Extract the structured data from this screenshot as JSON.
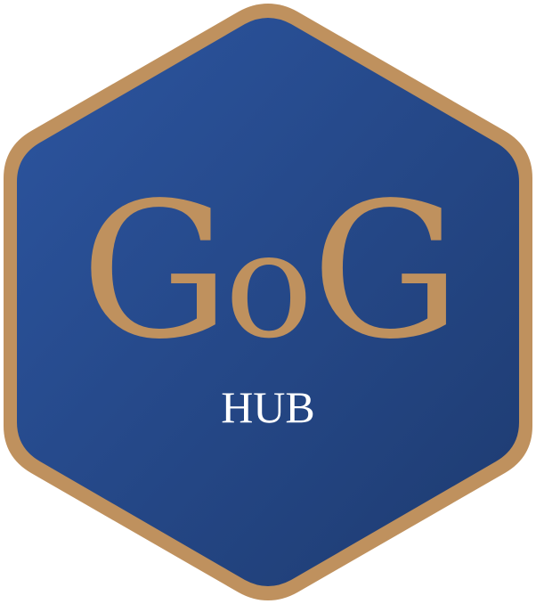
{
  "logo": {
    "main_text_parts": [
      "G",
      "o",
      "G"
    ],
    "sub_text": "HUB"
  },
  "colors": {
    "border": "#bf915e",
    "fill_top": "#2a5298",
    "fill_bottom": "#1f3d73",
    "main_text": "#bf915e",
    "sub_text": "#ffffff"
  }
}
